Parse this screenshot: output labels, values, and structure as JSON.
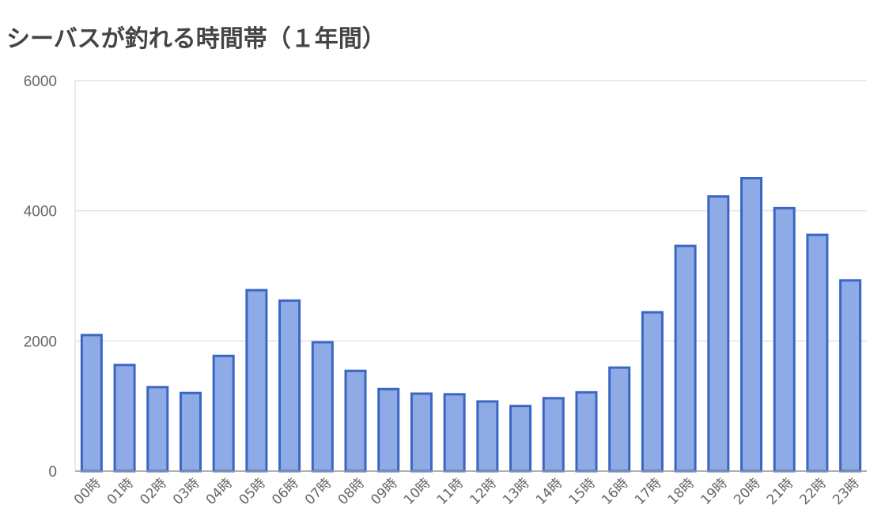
{
  "chart_data": {
    "type": "bar",
    "title": "シーバスが釣れる時間帯（１年間）",
    "xlabel": "",
    "ylabel": "",
    "ylim": [
      0,
      6000
    ],
    "yticks": [
      "0",
      "2000",
      "4000",
      "6000"
    ],
    "grid": true,
    "legend": "none",
    "categories": [
      "00時",
      "01時",
      "02時",
      "03時",
      "04時",
      "05時",
      "06時",
      "07時",
      "08時",
      "09時",
      "10時",
      "11時",
      "12時",
      "13時",
      "14時",
      "15時",
      "16時",
      "17時",
      "18時",
      "19時",
      "20時",
      "21時",
      "22時",
      "23時"
    ],
    "values": [
      2090,
      1630,
      1290,
      1200,
      1770,
      2780,
      2620,
      1980,
      1540,
      1260,
      1190,
      1180,
      1070,
      1000,
      1120,
      1210,
      1590,
      2440,
      3460,
      4220,
      4500,
      4040,
      3630,
      2930
    ],
    "colors": {
      "bar_fill": "#8eabe6",
      "bar_stroke": "#3b66c4",
      "grid": "#e4e4e4",
      "axis": "#999999"
    }
  }
}
